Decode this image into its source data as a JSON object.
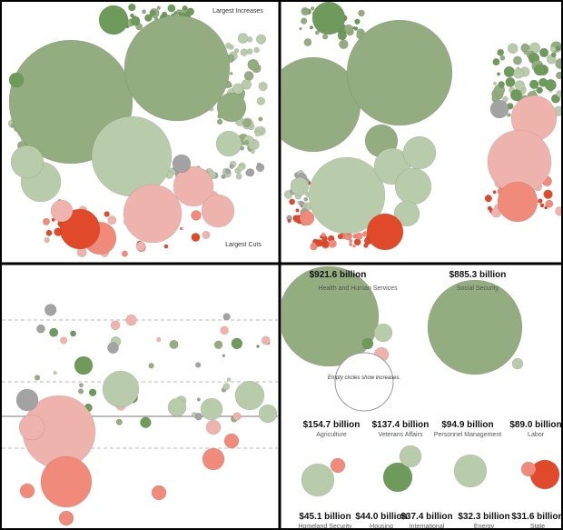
{
  "overview": {
    "top_label": "Largest Increases",
    "bottom_label": "Largest Cuts"
  },
  "featured": [
    {
      "amount": "$921.6 billion",
      "name": "Health and Human Services"
    },
    {
      "amount": "$885.3 billion",
      "name": "Social Security"
    }
  ],
  "legend_note": "Empty circles show increases.",
  "departments": [
    {
      "amount": "$154.7 billion",
      "name": "Agriculture"
    },
    {
      "amount": "$137.4 billion",
      "name": "Veterans Affairs"
    },
    {
      "amount": "$94.9 billion",
      "name": "Personnel Management"
    },
    {
      "amount": "$89.0 billion",
      "name": "Labor"
    },
    {
      "amount": "$45.1 billion",
      "name": "Homeland Security"
    },
    {
      "amount": "$44.0 billion",
      "name": "Housing"
    },
    {
      "amount": "$37.4 billion",
      "name": "International"
    },
    {
      "amount": "$32.3 billion",
      "name": "Energy"
    },
    {
      "amount": "$31.6 billion",
      "name": "State"
    }
  ]
}
